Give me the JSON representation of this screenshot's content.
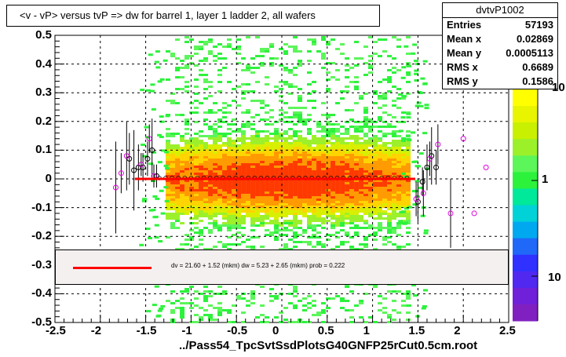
{
  "chart_data": {
    "type": "scatter",
    "title": "<v - vP>       versus  tvP =>  dw for barrel 1, layer 1 ladder 2, all wafers",
    "xlabel": "../Pass54_TpcSvtSsdPlotsG40GNFP25rCut0.5cm.root",
    "ylabel": "",
    "xlim": [
      -2.5,
      2.5
    ],
    "ylim": [
      -0.5,
      0.5
    ],
    "x_ticks": [
      "-2.5",
      "-2",
      "-1.5",
      "-1",
      "-0.5",
      "0",
      "0.5",
      "1",
      "1.5",
      "2",
      "2.5"
    ],
    "y_ticks": [
      "-0.5",
      "-0.4",
      "-0.3",
      "-0.2",
      "-0.1",
      "0",
      "0.1",
      "0.2",
      "0.3",
      "0.4",
      "0.5"
    ],
    "grid": true,
    "colorbar_labels": [
      "10",
      "1",
      "10"
    ],
    "stats": {
      "name": "dvtvP1002",
      "rows": [
        {
          "label": "Entries",
          "value": "57193"
        },
        {
          "label": "Mean x",
          "value": "0.02869"
        },
        {
          "label": "Mean y",
          "value": "0.0005113"
        },
        {
          "label": "RMS x",
          "value": "0.6689"
        },
        {
          "label": "RMS y",
          "value": "0.1586"
        }
      ]
    },
    "fit_legend": "dv =    21.60 +   1.52 (mkm) dw =     5.23 +   2.65 (mkm) prob = 0.222",
    "fit_line": {
      "x": [
        -1.62,
        1.47
      ],
      "y": [
        0.0,
        0.0
      ],
      "color": "#ff0000"
    },
    "profile_black": [
      {
        "x": -1.68,
        "y": 0.07,
        "err": 0.09
      },
      {
        "x": -1.63,
        "y": 0.03,
        "err": 0.14
      },
      {
        "x": -1.58,
        "y": 0.04,
        "err": 0.08
      },
      {
        "x": -1.53,
        "y": 0.04,
        "err": 0.05
      },
      {
        "x": -1.48,
        "y": 0.07,
        "err": 0.06
      },
      {
        "x": -1.43,
        "y": 0.1,
        "err": 0.11
      },
      {
        "x": -1.38,
        "y": 0.01,
        "err": 0.04
      },
      {
        "x": 1.5,
        "y": -0.08,
        "err": 0.07
      },
      {
        "x": 1.55,
        "y": -0.01,
        "err": 0.05
      },
      {
        "x": 1.6,
        "y": 0.04,
        "err": 0.08
      },
      {
        "x": 1.65,
        "y": 0.08,
        "err": 0.1
      },
      {
        "x": 1.7,
        "y": 0.04,
        "err": 0.06
      }
    ],
    "profile_magenta": [
      {
        "x": -1.83,
        "y": -0.03,
        "err": 0.16
      },
      {
        "x": -1.77,
        "y": 0.02,
        "err": 0.07
      },
      {
        "x": -1.71,
        "y": 0.08,
        "err": 0.12
      },
      {
        "x": -1.55,
        "y": 0.05,
        "err": 0.04
      },
      {
        "x": -1.46,
        "y": 0.14,
        "err": 0.05
      },
      {
        "x": -1.41,
        "y": 0.01,
        "err": 0.04
      },
      {
        "x": 1.48,
        "y": -0.07,
        "err": 0.06
      },
      {
        "x": 1.56,
        "y": -0.05,
        "err": 0.08
      },
      {
        "x": 1.63,
        "y": 0.07,
        "err": 0.06
      },
      {
        "x": 1.72,
        "y": 0.12,
        "err": 0.07
      },
      {
        "x": 1.86,
        "y": -0.12,
        "err": 0.12
      },
      {
        "x": 2.25,
        "y": 0.04,
        "err": 0.0
      },
      {
        "x": 2.0,
        "y": 0.14,
        "err": 0.0
      }
    ],
    "outliers": [
      {
        "x": 2.12,
        "y": -0.12
      }
    ]
  }
}
